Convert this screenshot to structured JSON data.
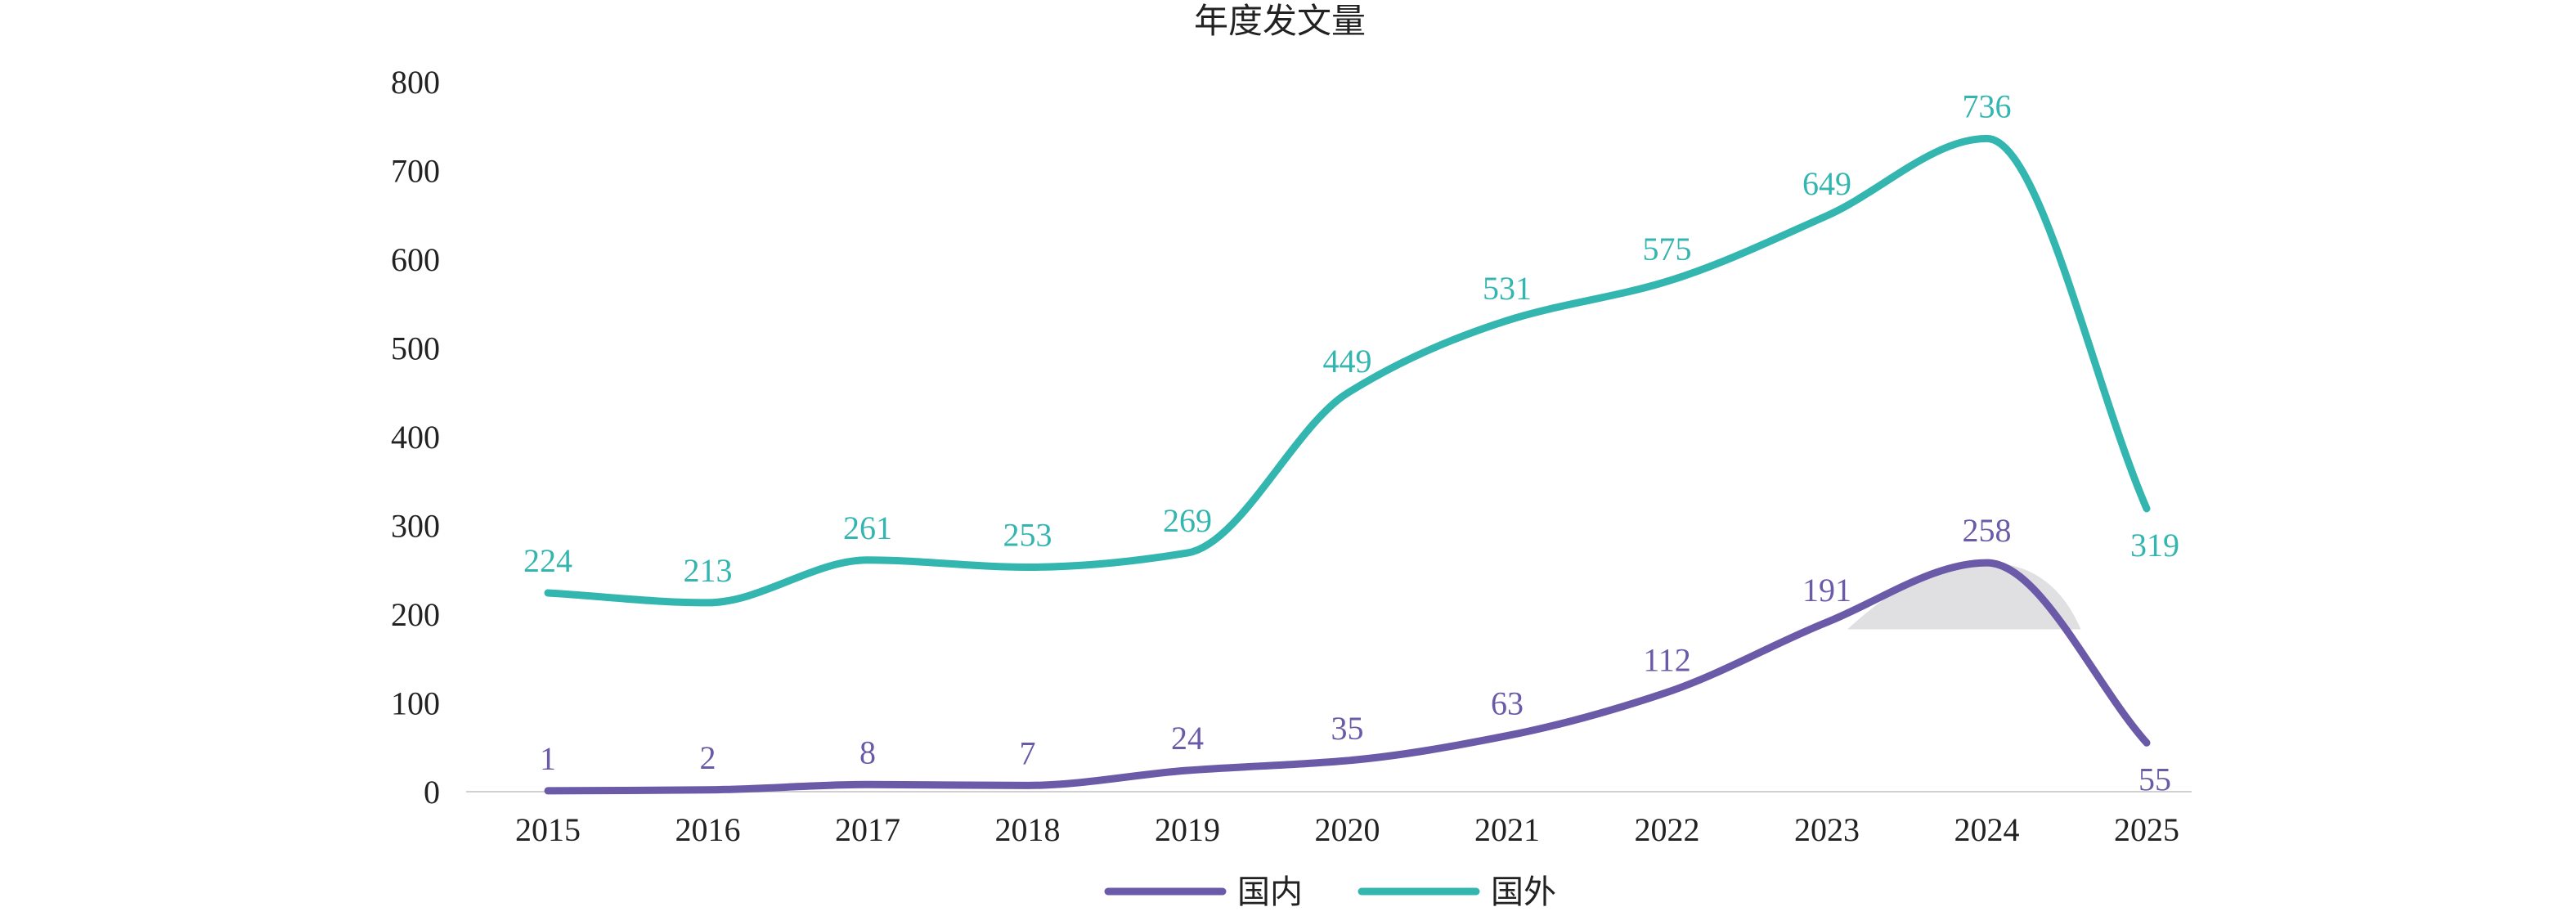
{
  "chart_data": {
    "type": "line",
    "title": "年度发文量",
    "xlabel": "",
    "ylabel": "",
    "categories": [
      "2015",
      "2016",
      "2017",
      "2018",
      "2019",
      "2020",
      "2021",
      "2022",
      "2023",
      "2024",
      "2025"
    ],
    "ylim": [
      0,
      800
    ],
    "yticks": [
      "0",
      "100",
      "200",
      "300",
      "400",
      "500",
      "600",
      "700",
      "800"
    ],
    "grid": false,
    "smooth": true,
    "legend_position": "bottom",
    "series": [
      {
        "name": "国内",
        "color": "#6a5aa8",
        "values": [
          1,
          2,
          8,
          7,
          24,
          35,
          63,
          112,
          191,
          258,
          55
        ],
        "labels": [
          "1",
          "2",
          "8",
          "7",
          "24",
          "35",
          "63",
          "112",
          "191",
          "258",
          "55"
        ]
      },
      {
        "name": "国外",
        "color": "#33b5b0",
        "values": [
          224,
          213,
          261,
          253,
          269,
          449,
          531,
          575,
          649,
          736,
          319
        ],
        "labels": [
          "224",
          "213",
          "261",
          "253",
          "269",
          "449",
          "531",
          "575",
          "649",
          "736",
          "319"
        ]
      }
    ]
  }
}
